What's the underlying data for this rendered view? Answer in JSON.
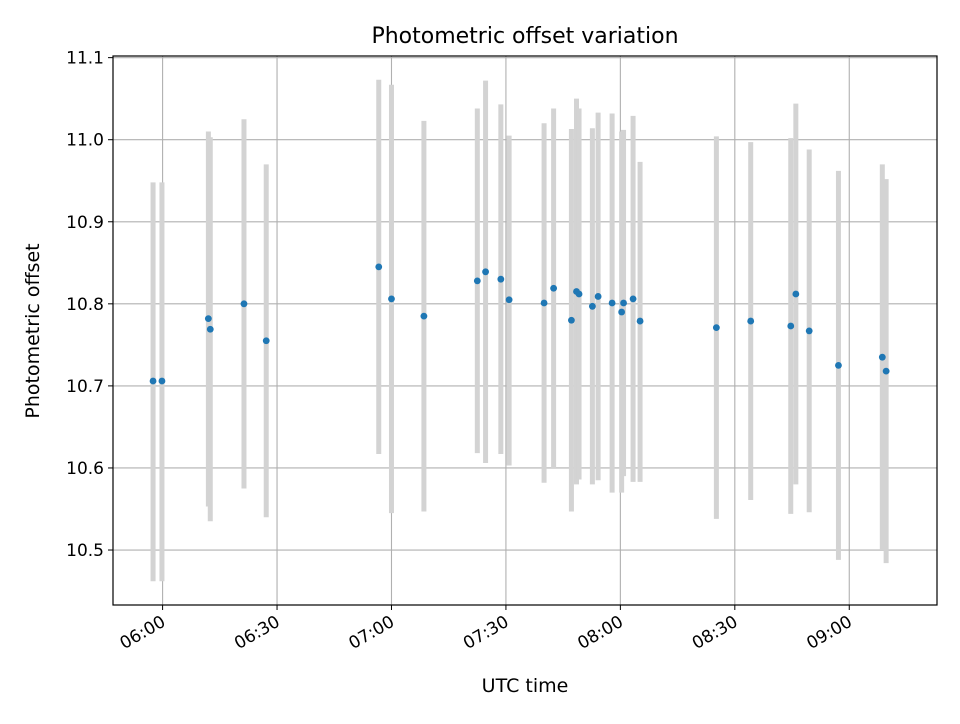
{
  "chart_data": {
    "type": "scatter",
    "title": "Photometric offset variation",
    "xlabel": "UTC time",
    "ylabel": "Photometric offset",
    "xlim": [
      "05:47",
      "09:23"
    ],
    "ylim": [
      10.433,
      11.102
    ],
    "grid": true,
    "legend": "none",
    "x_ticks": [
      "06:00",
      "06:30",
      "07:00",
      "07:30",
      "08:00",
      "08:30",
      "09:00"
    ],
    "y_ticks": [
      "10.5",
      "10.6",
      "10.7",
      "10.8",
      "10.9",
      "11.0",
      "11.1"
    ],
    "colors": {
      "point": "#1f77b4",
      "errorbar": "#d3d3d3",
      "grid": "#b0b0b0"
    },
    "series": [
      {
        "points": [
          {
            "t": "05:57:30",
            "y": 10.706,
            "lo": 10.462,
            "hi": 10.948
          },
          {
            "t": "05:59:50",
            "y": 10.706,
            "lo": 10.462,
            "hi": 10.948
          },
          {
            "t": "06:12:00",
            "y": 10.782,
            "lo": 10.553,
            "hi": 11.01
          },
          {
            "t": "06:12:30",
            "y": 10.769,
            "lo": 10.535,
            "hi": 11.003
          },
          {
            "t": "06:21:20",
            "y": 10.8,
            "lo": 10.575,
            "hi": 11.025
          },
          {
            "t": "06:27:10",
            "y": 10.755,
            "lo": 10.54,
            "hi": 10.97
          },
          {
            "t": "06:56:40",
            "y": 10.845,
            "lo": 10.617,
            "hi": 11.073
          },
          {
            "t": "07:00:00",
            "y": 10.806,
            "lo": 10.545,
            "hi": 11.067
          },
          {
            "t": "07:08:30",
            "y": 10.785,
            "lo": 10.547,
            "hi": 11.023
          },
          {
            "t": "07:22:30",
            "y": 10.828,
            "lo": 10.618,
            "hi": 11.038
          },
          {
            "t": "07:24:40",
            "y": 10.839,
            "lo": 10.606,
            "hi": 11.072
          },
          {
            "t": "07:28:40",
            "y": 10.83,
            "lo": 10.617,
            "hi": 11.043
          },
          {
            "t": "07:30:50",
            "y": 10.805,
            "lo": 10.603,
            "hi": 11.005
          },
          {
            "t": "07:40:00",
            "y": 10.801,
            "lo": 10.582,
            "hi": 11.02
          },
          {
            "t": "07:42:30",
            "y": 10.819,
            "lo": 10.6,
            "hi": 11.038
          },
          {
            "t": "07:47:10",
            "y": 10.78,
            "lo": 10.547,
            "hi": 11.013
          },
          {
            "t": "07:48:30",
            "y": 10.815,
            "lo": 10.58,
            "hi": 11.05
          },
          {
            "t": "07:49:10",
            "y": 10.812,
            "lo": 10.586,
            "hi": 11.038
          },
          {
            "t": "07:52:40",
            "y": 10.797,
            "lo": 10.58,
            "hi": 11.014
          },
          {
            "t": "07:54:10",
            "y": 10.809,
            "lo": 10.585,
            "hi": 11.033
          },
          {
            "t": "07:57:50",
            "y": 10.801,
            "lo": 10.57,
            "hi": 11.032
          },
          {
            "t": "08:00:20",
            "y": 10.79,
            "lo": 10.57,
            "hi": 11.01
          },
          {
            "t": "08:00:50",
            "y": 10.801,
            "lo": 10.59,
            "hi": 11.012
          },
          {
            "t": "08:03:20",
            "y": 10.806,
            "lo": 10.583,
            "hi": 11.029
          },
          {
            "t": "08:05:10",
            "y": 10.779,
            "lo": 10.583,
            "hi": 10.973
          },
          {
            "t": "08:25:10",
            "y": 10.771,
            "lo": 10.538,
            "hi": 11.004
          },
          {
            "t": "08:34:10",
            "y": 10.779,
            "lo": 10.561,
            "hi": 10.997
          },
          {
            "t": "08:44:40",
            "y": 10.773,
            "lo": 10.544,
            "hi": 11.002
          },
          {
            "t": "08:46:00",
            "y": 10.812,
            "lo": 10.58,
            "hi": 11.044
          },
          {
            "t": "08:49:30",
            "y": 10.767,
            "lo": 10.546,
            "hi": 10.988
          },
          {
            "t": "08:57:10",
            "y": 10.725,
            "lo": 10.488,
            "hi": 10.962
          },
          {
            "t": "09:08:40",
            "y": 10.735,
            "lo": 10.5,
            "hi": 10.97
          },
          {
            "t": "09:09:40",
            "y": 10.718,
            "lo": 10.484,
            "hi": 10.952
          }
        ]
      }
    ]
  }
}
